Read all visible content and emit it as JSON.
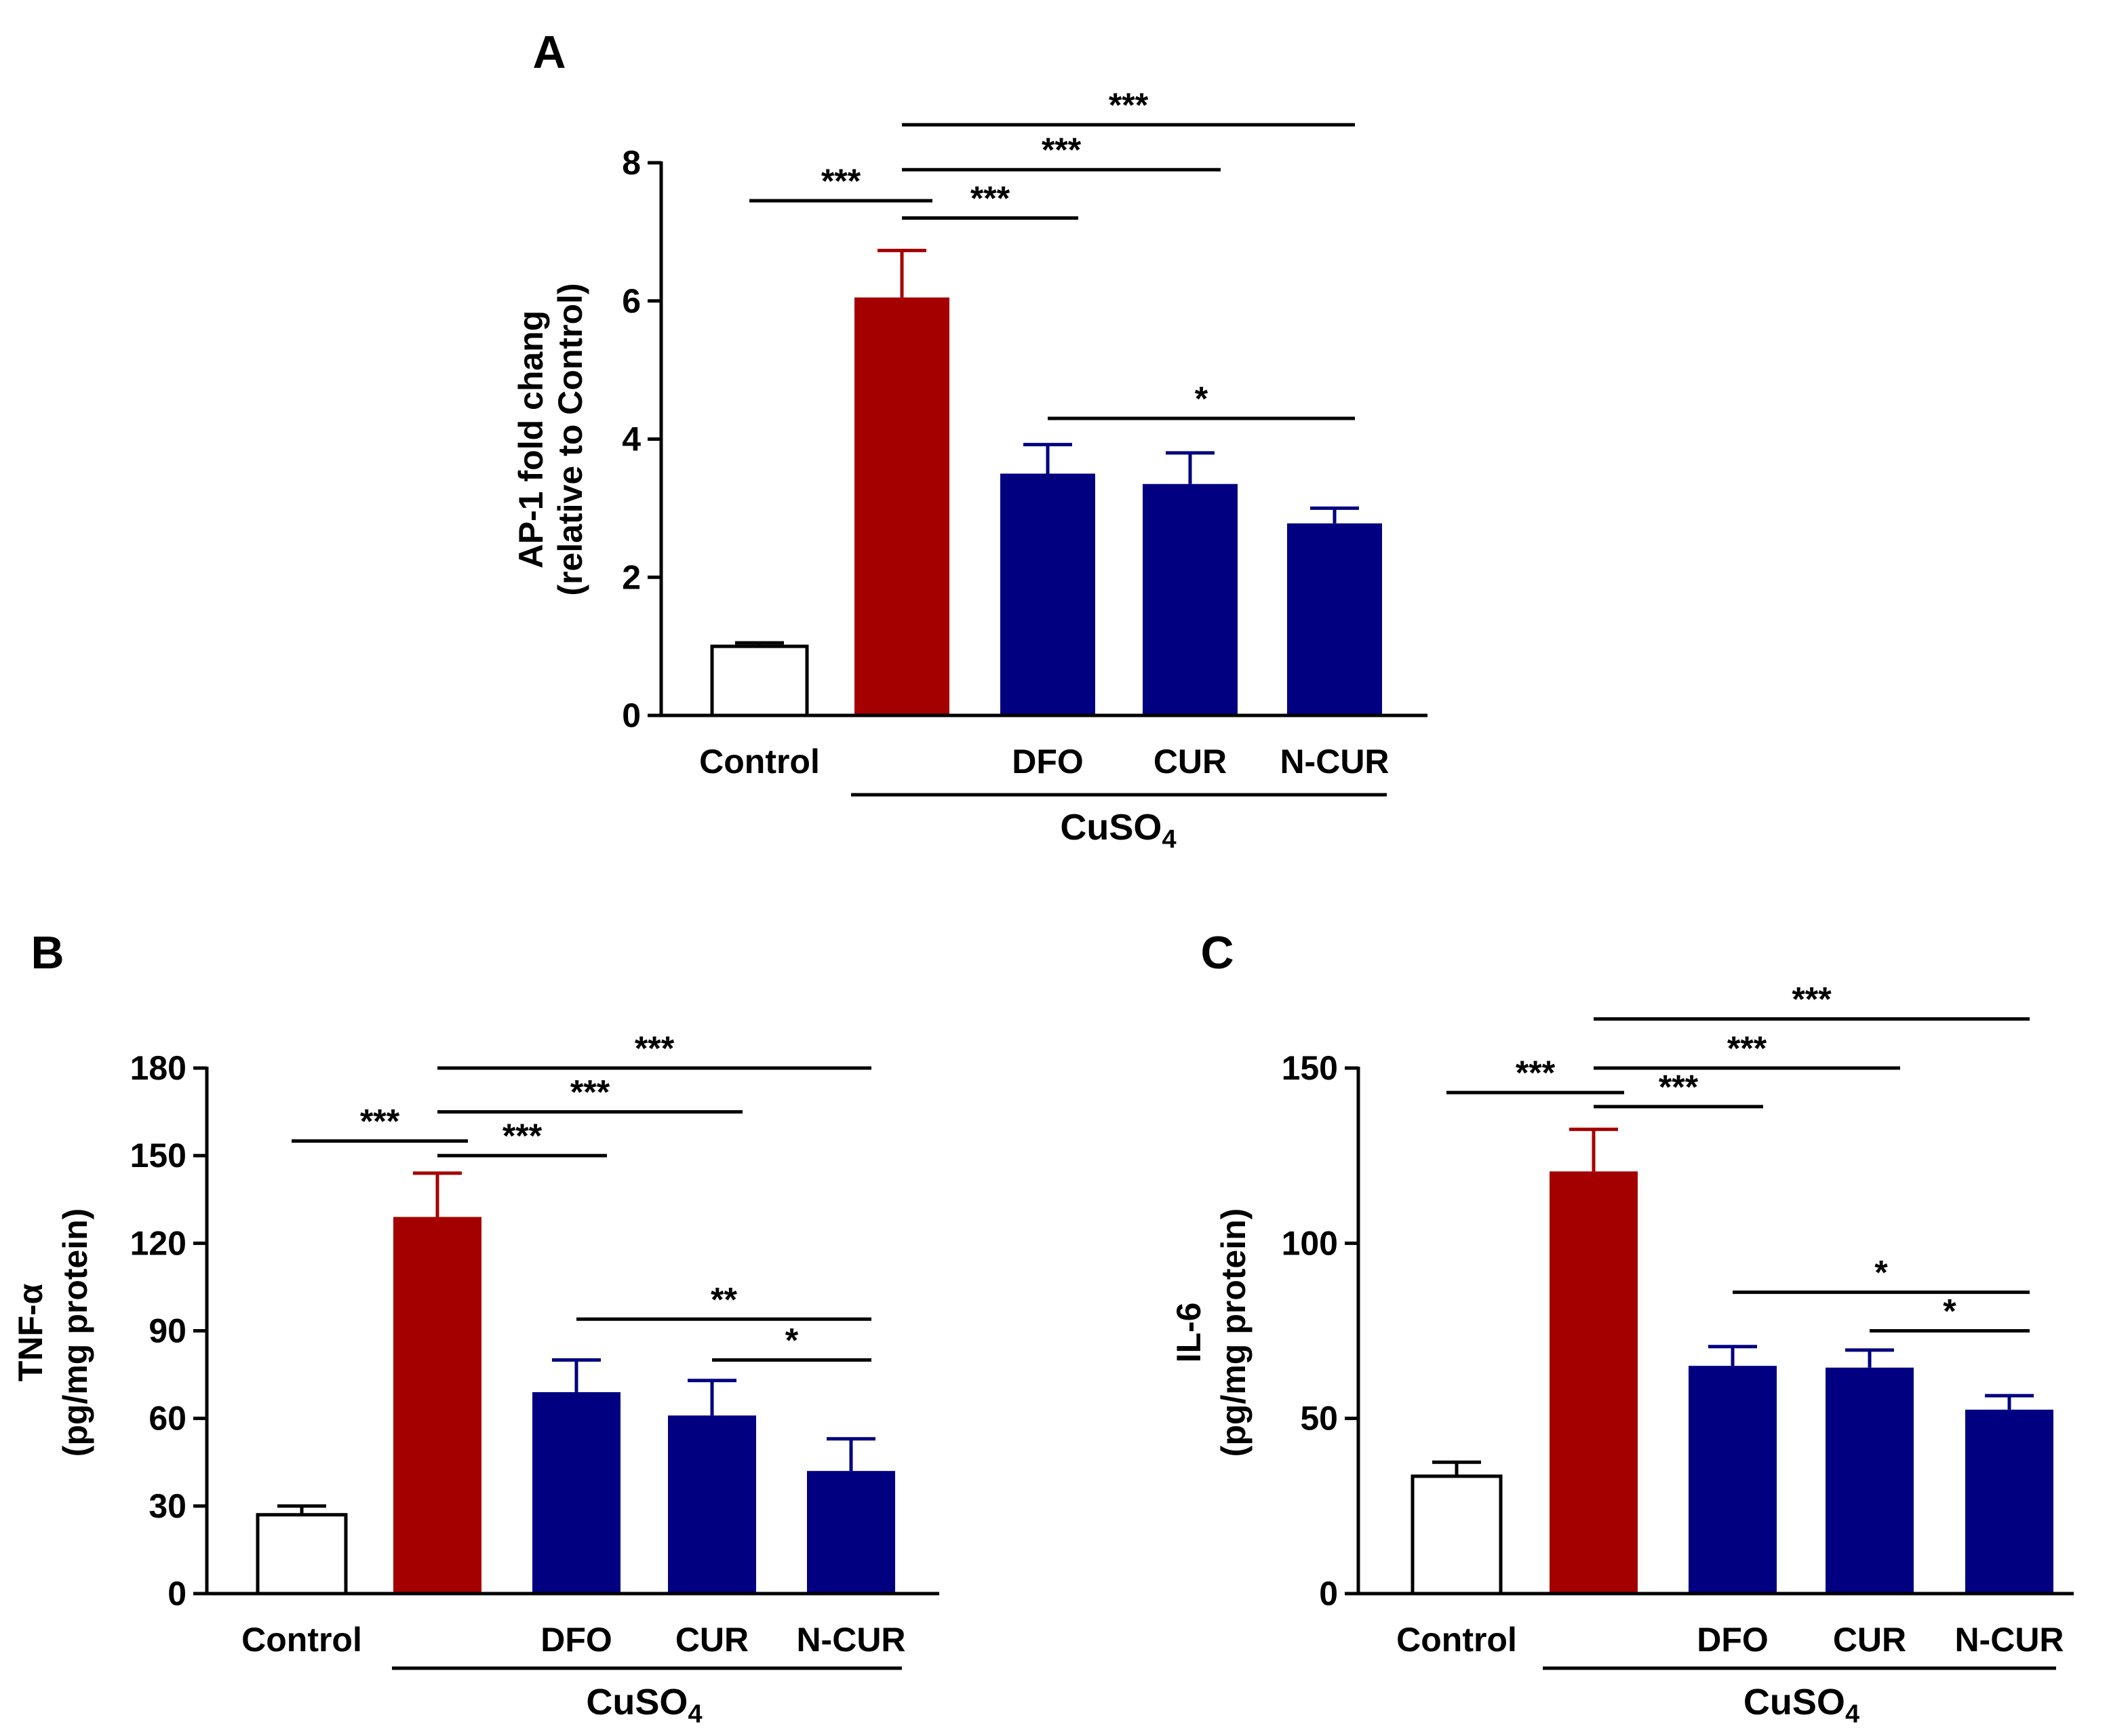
{
  "chart_data": [
    {
      "panel": "A",
      "type": "bar",
      "categories": [
        "Control",
        "",
        "DFO",
        "CUR",
        "N-CUR"
      ],
      "values": [
        1.0,
        6.05,
        3.5,
        3.35,
        2.78
      ],
      "errors": [
        0.05,
        0.68,
        0.42,
        0.45,
        0.22
      ],
      "colors": [
        "#ffffff",
        "#a50000",
        "#000080",
        "#000080",
        "#000080"
      ],
      "group_label": "CuSO",
      "group_label_sub": "4",
      "group_span": [
        1,
        4
      ],
      "ylabel_line1": "AP-1 fold chang",
      "ylabel_line2": "(relative to Control)",
      "ylim": [
        0,
        8
      ],
      "yticks": [
        "0",
        "2",
        "4",
        "6",
        "8"
      ],
      "significance": [
        {
          "from": 0,
          "to": 1,
          "label": "***",
          "level": 7.45
        },
        {
          "from": 1,
          "to": 2,
          "label": "***",
          "level": 7.2
        },
        {
          "from": 1,
          "to": 3,
          "label": "***",
          "level": 7.9
        },
        {
          "from": 1,
          "to": 4,
          "label": "***",
          "level": 8.55
        },
        {
          "from": 2,
          "to": 4,
          "label": "*",
          "level": 4.3
        }
      ]
    },
    {
      "panel": "B",
      "type": "bar",
      "categories": [
        "Control",
        "",
        "DFO",
        "CUR",
        "N-CUR"
      ],
      "values": [
        27,
        129,
        69,
        61,
        42
      ],
      "errors": [
        3,
        15,
        11,
        12,
        11
      ],
      "colors": [
        "#ffffff",
        "#a50000",
        "#000080",
        "#000080",
        "#000080"
      ],
      "group_label": "CuSO",
      "group_label_sub": "4",
      "group_span": [
        1,
        4
      ],
      "ylabel_line1": "TNF-α",
      "ylabel_line2": "(pg/mg protein)",
      "ylim": [
        0,
        180
      ],
      "yticks": [
        "0",
        "30",
        "60",
        "90",
        "120",
        "150",
        "180"
      ],
      "significance": [
        {
          "from": 0,
          "to": 1,
          "label": "***",
          "level": 155
        },
        {
          "from": 1,
          "to": 2,
          "label": "***",
          "level": 150
        },
        {
          "from": 1,
          "to": 3,
          "label": "***",
          "level": 165
        },
        {
          "from": 1,
          "to": 4,
          "label": "***",
          "level": 180
        },
        {
          "from": 2,
          "to": 4,
          "label": "**",
          "level": 94
        },
        {
          "from": 3,
          "to": 4,
          "label": "*",
          "level": 80
        }
      ]
    },
    {
      "panel": "C",
      "type": "bar",
      "categories": [
        "Control",
        "",
        "DFO",
        "CUR",
        "N-CUR"
      ],
      "values": [
        33.5,
        120.5,
        65,
        64.5,
        52.5
      ],
      "errors": [
        4,
        12,
        5.5,
        5,
        4
      ],
      "colors": [
        "#ffffff",
        "#a50000",
        "#000080",
        "#000080",
        "#000080"
      ],
      "group_label": "CuSO",
      "group_label_sub": "4",
      "group_span": [
        1,
        4
      ],
      "ylabel_line1": "IL-6",
      "ylabel_line2": "(pg/mg protein)",
      "ylim": [
        0,
        150
      ],
      "yticks": [
        "0",
        "50",
        "100",
        "150"
      ],
      "significance": [
        {
          "from": 0,
          "to": 1,
          "label": "***",
          "level": 143
        },
        {
          "from": 1,
          "to": 2,
          "label": "***",
          "level": 139
        },
        {
          "from": 1,
          "to": 3,
          "label": "***",
          "level": 150
        },
        {
          "from": 1,
          "to": 4,
          "label": "***",
          "level": 164
        },
        {
          "from": 2,
          "to": 4,
          "label": "*",
          "level": 86
        },
        {
          "from": 3,
          "to": 4,
          "label": "*",
          "level": 75
        }
      ]
    }
  ]
}
